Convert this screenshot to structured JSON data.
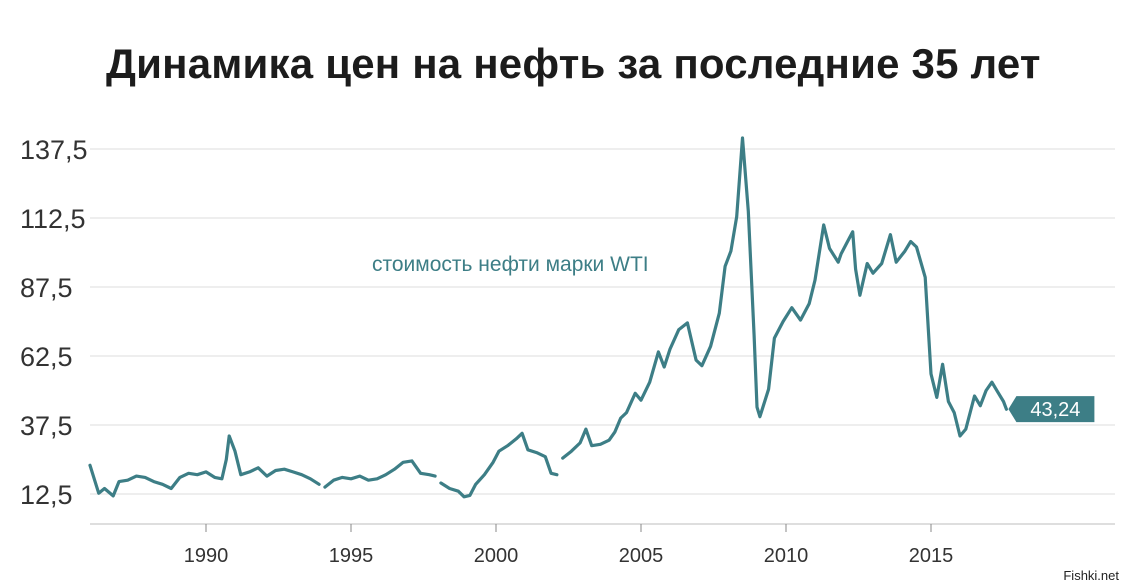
{
  "title": "Динамика цен на нефть за последние 35 лет",
  "watermark": "Fishki.net",
  "colors": {
    "line": "#3d7e86",
    "grid": "#dcdcdc",
    "text": "#333333"
  },
  "chart_data": {
    "type": "line",
    "title": "Динамика цен на нефть за последние 35 лет",
    "xlabel": "",
    "ylabel": "",
    "xlim": [
      1986,
      2019
    ],
    "ylim": [
      5,
      145
    ],
    "y_ticks": [
      "12,5",
      "37,5",
      "62,5",
      "87,5",
      "112,5",
      "137,5"
    ],
    "x_ticks": [
      "1990",
      "1995",
      "2000",
      "2005",
      "2010",
      "2015"
    ],
    "grid": "horizontal",
    "annotation": "стоимость нефти марки WTI",
    "end_label": "43,24",
    "series": [
      {
        "segments": [
          [
            [
              1986.0,
              22.9
            ],
            [
              1986.3,
              12.8
            ],
            [
              1986.5,
              14.5
            ],
            [
              1986.8,
              11.8
            ],
            [
              1987.0,
              17.0
            ],
            [
              1987.3,
              17.5
            ],
            [
              1987.6,
              19.0
            ],
            [
              1987.9,
              18.5
            ],
            [
              1988.2,
              17.0
            ],
            [
              1988.5,
              16.0
            ],
            [
              1988.8,
              14.5
            ],
            [
              1989.1,
              18.5
            ],
            [
              1989.4,
              20.0
            ],
            [
              1989.7,
              19.5
            ],
            [
              1990.0,
              20.5
            ],
            [
              1990.3,
              18.5
            ],
            [
              1990.55,
              18.0
            ],
            [
              1990.7,
              25.0
            ],
            [
              1990.8,
              33.5
            ],
            [
              1991.0,
              28.0
            ],
            [
              1991.2,
              19.5
            ],
            [
              1991.5,
              20.5
            ],
            [
              1991.8,
              22.0
            ],
            [
              1992.1,
              19.0
            ],
            [
              1992.4,
              21.0
            ],
            [
              1992.7,
              21.5
            ],
            [
              1993.0,
              20.5
            ],
            [
              1993.3,
              19.5
            ],
            [
              1993.6,
              18.0
            ],
            [
              1993.9,
              16.0
            ]
          ],
          [
            [
              1994.1,
              15.0
            ],
            [
              1994.4,
              17.5
            ],
            [
              1994.7,
              18.5
            ],
            [
              1995.0,
              18.0
            ],
            [
              1995.3,
              19.0
            ],
            [
              1995.6,
              17.5
            ],
            [
              1995.9,
              18.0
            ],
            [
              1996.2,
              19.5
            ],
            [
              1996.5,
              21.5
            ],
            [
              1996.8,
              24.0
            ],
            [
              1997.1,
              24.5
            ],
            [
              1997.4,
              20.0
            ],
            [
              1997.7,
              19.5
            ],
            [
              1997.9,
              19.0
            ]
          ],
          [
            [
              1998.1,
              16.5
            ],
            [
              1998.4,
              14.5
            ],
            [
              1998.7,
              13.5
            ],
            [
              1998.9,
              11.5
            ],
            [
              1999.1,
              12.0
            ],
            [
              1999.3,
              16.0
            ],
            [
              1999.6,
              19.5
            ],
            [
              1999.9,
              24.0
            ],
            [
              2000.1,
              28.0
            ],
            [
              2000.4,
              30.0
            ],
            [
              2000.7,
              32.5
            ],
            [
              2000.9,
              34.5
            ],
            [
              2001.1,
              28.5
            ],
            [
              2001.4,
              27.5
            ],
            [
              2001.7,
              26.0
            ],
            [
              2001.9,
              20.0
            ],
            [
              2002.1,
              19.5
            ]
          ],
          [
            [
              2002.3,
              25.5
            ],
            [
              2002.6,
              28.0
            ],
            [
              2002.9,
              31.0
            ],
            [
              2003.1,
              36.0
            ],
            [
              2003.3,
              30.0
            ],
            [
              2003.6,
              30.5
            ],
            [
              2003.9,
              32.0
            ],
            [
              2004.1,
              35.0
            ],
            [
              2004.3,
              40.0
            ],
            [
              2004.5,
              42.0
            ],
            [
              2004.8,
              49.0
            ],
            [
              2005.0,
              46.5
            ],
            [
              2005.3,
              53.0
            ],
            [
              2005.6,
              64.0
            ],
            [
              2005.8,
              58.5
            ],
            [
              2006.0,
              65.0
            ],
            [
              2006.3,
              72.0
            ],
            [
              2006.6,
              74.5
            ],
            [
              2006.9,
              61.0
            ],
            [
              2007.1,
              59.0
            ],
            [
              2007.4,
              66.0
            ],
            [
              2007.7,
              78.0
            ],
            [
              2007.9,
              95.0
            ],
            [
              2008.1,
              100.5
            ],
            [
              2008.3,
              113.0
            ],
            [
              2008.5,
              141.5
            ],
            [
              2008.7,
              115.0
            ],
            [
              2008.9,
              70.0
            ],
            [
              2009.0,
              44.0
            ],
            [
              2009.1,
              40.5
            ],
            [
              2009.4,
              50.5
            ],
            [
              2009.6,
              69.0
            ],
            [
              2009.9,
              75.0
            ],
            [
              2010.2,
              80.0
            ],
            [
              2010.5,
              75.5
            ],
            [
              2010.8,
              81.5
            ],
            [
              2011.0,
              90.0
            ],
            [
              2011.3,
              110.0
            ],
            [
              2011.5,
              101.5
            ],
            [
              2011.8,
              96.5
            ],
            [
              2011.9,
              99.5
            ],
            [
              2012.1,
              103.5
            ],
            [
              2012.3,
              107.5
            ],
            [
              2012.4,
              94.0
            ],
            [
              2012.55,
              84.5
            ],
            [
              2012.8,
              96.0
            ],
            [
              2013.0,
              92.5
            ],
            [
              2013.3,
              96.0
            ],
            [
              2013.6,
              106.5
            ],
            [
              2013.8,
              96.5
            ],
            [
              2014.1,
              100.5
            ],
            [
              2014.3,
              104.0
            ],
            [
              2014.5,
              102.0
            ],
            [
              2014.8,
              91.0
            ],
            [
              2015.0,
              56.0
            ],
            [
              2015.2,
              47.5
            ],
            [
              2015.4,
              59.5
            ],
            [
              2015.6,
              46.0
            ],
            [
              2015.8,
              42.0
            ],
            [
              2016.0,
              33.5
            ],
            [
              2016.2,
              36.0
            ],
            [
              2016.5,
              48.0
            ],
            [
              2016.7,
              44.5
            ],
            [
              2016.9,
              50.0
            ],
            [
              2017.1,
              53.0
            ],
            [
              2017.3,
              49.5
            ],
            [
              2017.5,
              46.0
            ],
            [
              2017.6,
              43.24
            ]
          ]
        ]
      }
    ]
  }
}
